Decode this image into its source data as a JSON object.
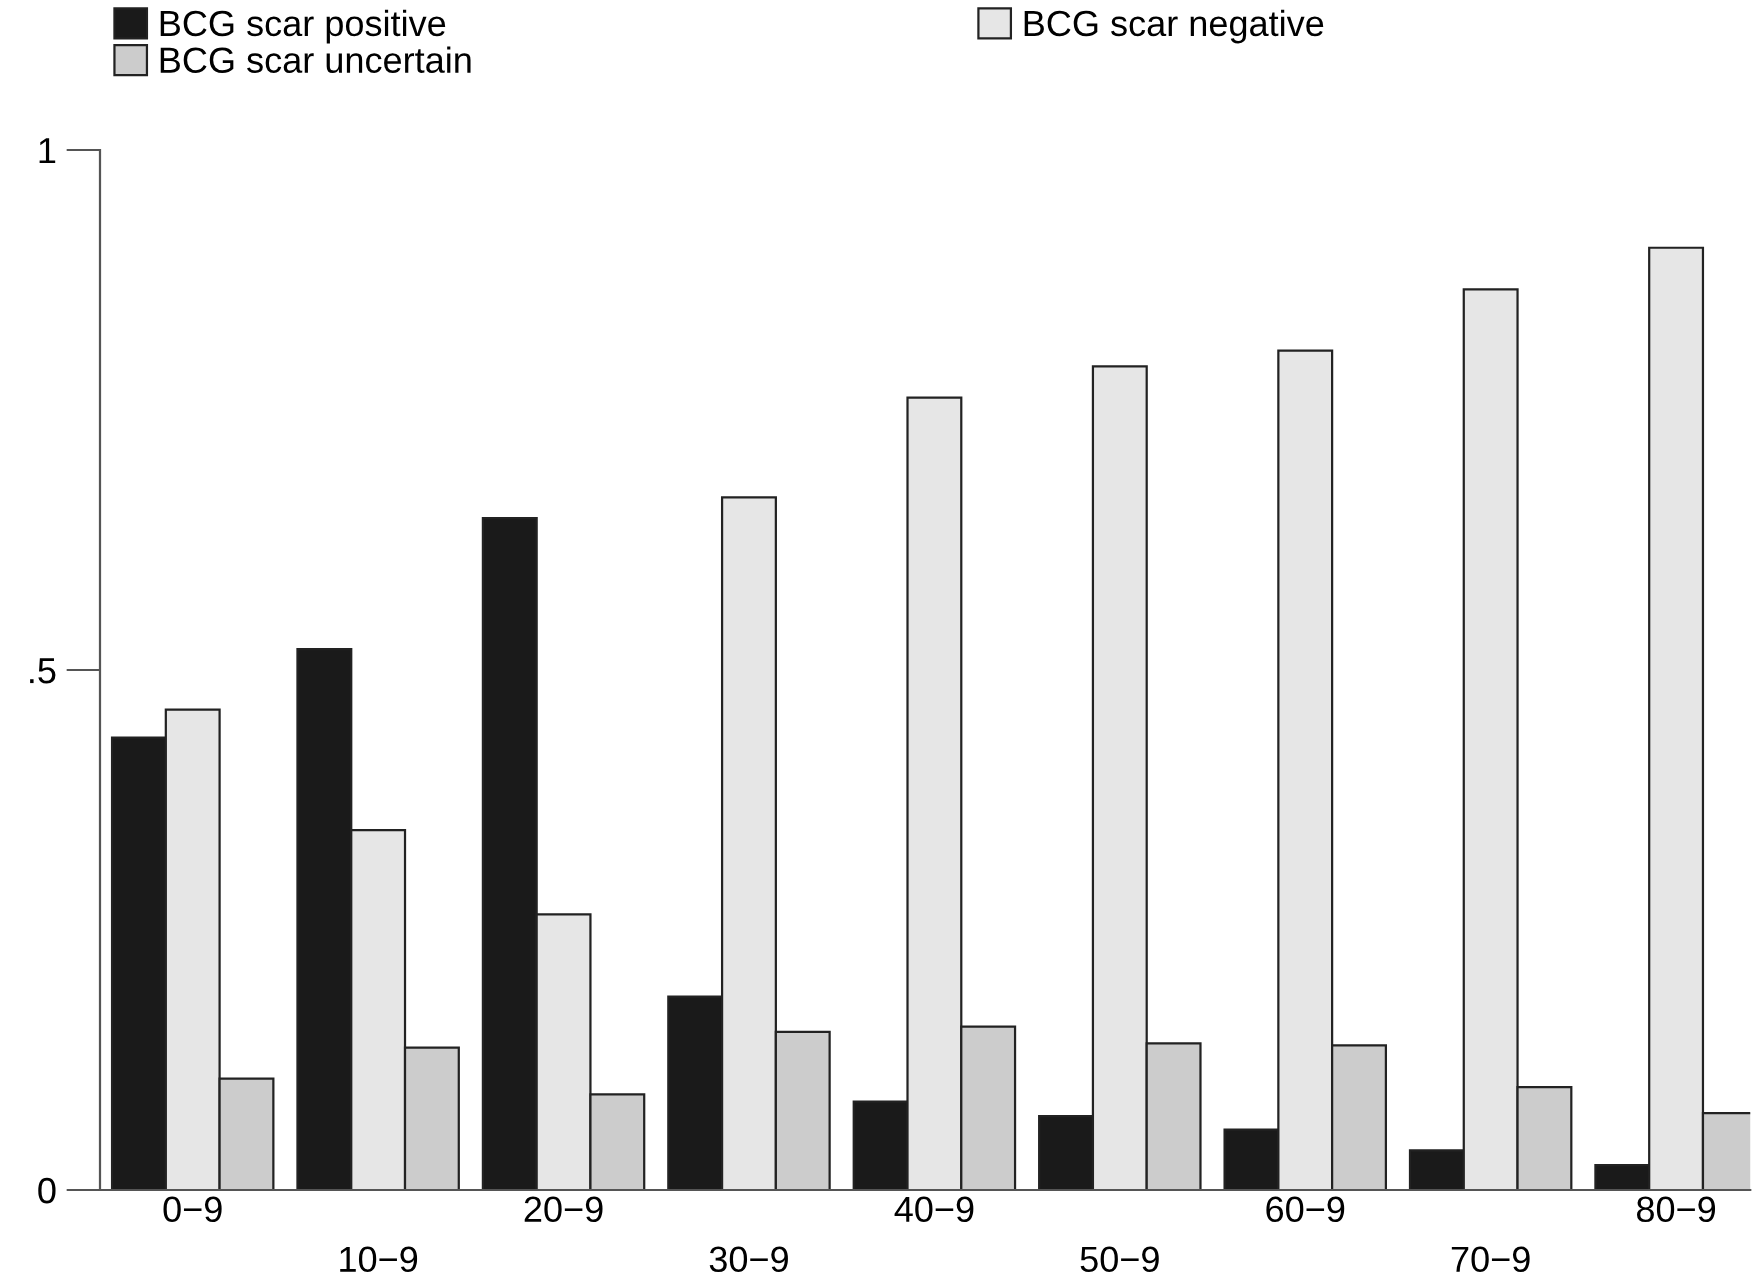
{
  "chart_data": {
    "type": "bar",
    "categories": [
      "0−9",
      "10−9",
      "20−9",
      "30−9",
      "40−9",
      "50−9",
      "60−9",
      "70−9",
      "80−9"
    ],
    "series": [
      {
        "name": "BCG scar positive",
        "color": "#1a1a1a",
        "values": [
          0.435,
          0.52,
          0.646,
          0.186,
          0.085,
          0.071,
          0.058,
          0.038,
          0.024
        ]
      },
      {
        "name": "BCG scar negative",
        "color": "#e6e6e6",
        "values": [
          0.462,
          0.346,
          0.265,
          0.666,
          0.762,
          0.792,
          0.807,
          0.866,
          0.906
        ]
      },
      {
        "name": "BCG scar uncertain",
        "color": "#cccccc",
        "values": [
          0.107,
          0.137,
          0.092,
          0.152,
          0.157,
          0.141,
          0.139,
          0.099,
          0.074
        ]
      }
    ],
    "ylim": [
      0,
      1
    ],
    "yticks": [
      0,
      {
        "value": 0.5,
        "label": ".5"
      },
      1
    ],
    "grid": false,
    "legend": "top"
  }
}
